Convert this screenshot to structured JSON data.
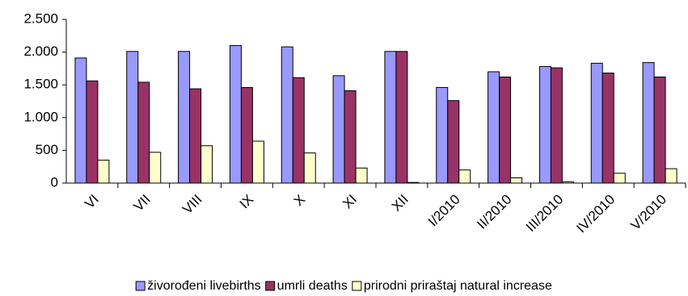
{
  "chart_data": {
    "type": "bar",
    "categories": [
      "VI",
      "VII",
      "VIII",
      "IX",
      "X",
      "XI",
      "XII",
      "I/2010",
      "II/2010",
      "III/2010",
      "IV/2010",
      "V/2010"
    ],
    "series": [
      {
        "name": "živorođeni livebirths",
        "color": "#9999ff",
        "values": [
          1910,
          2010,
          2010,
          2100,
          2080,
          1640,
          2010,
          1460,
          1700,
          1780,
          1830,
          1840
        ]
      },
      {
        "name": "umrli deaths",
        "color": "#993366",
        "values": [
          1560,
          1540,
          1440,
          1460,
          1610,
          1410,
          2010,
          1260,
          1620,
          1760,
          1680,
          1620
        ]
      },
      {
        "name": "prirodni priraštaj natural increase",
        "color": "#ffffcc",
        "values": [
          350,
          470,
          570,
          640,
          460,
          230,
          10,
          200,
          80,
          20,
          150,
          220
        ]
      }
    ],
    "ylim": [
      0,
      2500
    ],
    "yticks": [
      0,
      500,
      {
        "value": 1000,
        "label": "1.000"
      },
      {
        "value": 1500,
        "label": "1.500"
      },
      {
        "value": 2000,
        "label": "2.000"
      },
      {
        "value": 2500,
        "label": "2.500"
      }
    ],
    "grid": false,
    "legend": "bottom"
  }
}
